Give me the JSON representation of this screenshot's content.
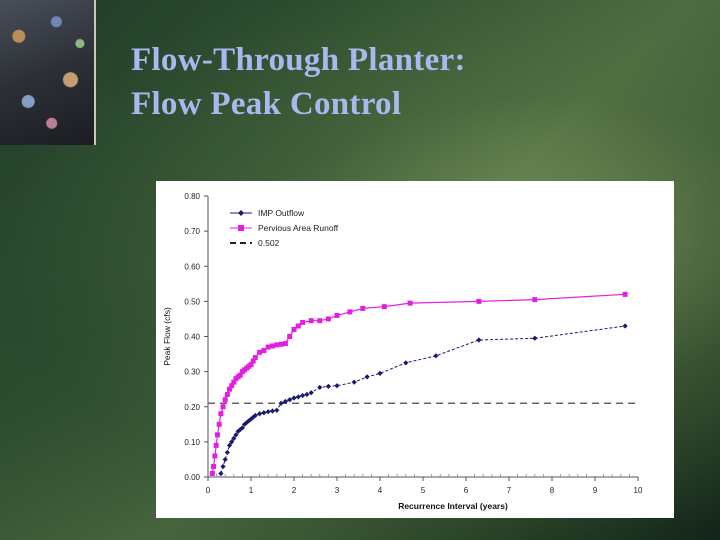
{
  "slide": {
    "title_line1": "Flow-Through Planter:",
    "title_line2": "Flow Peak Control"
  },
  "chart_data": {
    "type": "line",
    "xlabel": "Recurrence Interval (years)",
    "ylabel": "Peak Flow (cfs)",
    "xlim": [
      0,
      10
    ],
    "ylim": [
      0,
      0.8
    ],
    "x_ticks": [
      "0",
      "1",
      "2",
      "3",
      "4",
      "5",
      "6",
      "7",
      "8",
      "9",
      "10"
    ],
    "y_ticks": [
      "0.00",
      "0.10",
      "0.20",
      "0.30",
      "0.40",
      "0.50",
      "0.60",
      "0.70",
      "0.80"
    ],
    "grid": false,
    "legend_position": "top-left",
    "colors": {
      "imp": "#1a1a6e",
      "pervious": "#e21ee0",
      "threshold": "#666666"
    },
    "series": [
      {
        "name": "IMP Outflow",
        "marker": "diamond",
        "points": [
          [
            0.3,
            0.01
          ],
          [
            0.35,
            0.03
          ],
          [
            0.4,
            0.05
          ],
          [
            0.45,
            0.07
          ],
          [
            0.5,
            0.09
          ],
          [
            0.55,
            0.1
          ],
          [
            0.6,
            0.11
          ],
          [
            0.65,
            0.12
          ],
          [
            0.7,
            0.13
          ],
          [
            0.75,
            0.135
          ],
          [
            0.8,
            0.14
          ],
          [
            0.85,
            0.15
          ],
          [
            0.9,
            0.155
          ],
          [
            0.95,
            0.16
          ],
          [
            1.0,
            0.165
          ],
          [
            1.05,
            0.17
          ],
          [
            1.1,
            0.175
          ],
          [
            1.2,
            0.18
          ],
          [
            1.3,
            0.183
          ],
          [
            1.4,
            0.186
          ],
          [
            1.5,
            0.188
          ],
          [
            1.6,
            0.19
          ],
          [
            1.7,
            0.21
          ],
          [
            1.8,
            0.215
          ],
          [
            1.9,
            0.22
          ],
          [
            2.0,
            0.225
          ],
          [
            2.1,
            0.228
          ],
          [
            2.2,
            0.232
          ],
          [
            2.3,
            0.235
          ],
          [
            2.4,
            0.24
          ],
          [
            2.6,
            0.255
          ],
          [
            2.8,
            0.258
          ],
          [
            3.0,
            0.26
          ],
          [
            3.4,
            0.27
          ],
          [
            3.7,
            0.285
          ],
          [
            4.0,
            0.295
          ],
          [
            4.6,
            0.325
          ],
          [
            5.3,
            0.345
          ],
          [
            6.3,
            0.39
          ],
          [
            7.6,
            0.395
          ],
          [
            9.7,
            0.43
          ]
        ]
      },
      {
        "name": "Pervious Area Runoff",
        "marker": "square",
        "points": [
          [
            0.1,
            0.01
          ],
          [
            0.13,
            0.03
          ],
          [
            0.16,
            0.06
          ],
          [
            0.19,
            0.09
          ],
          [
            0.22,
            0.12
          ],
          [
            0.26,
            0.15
          ],
          [
            0.3,
            0.18
          ],
          [
            0.35,
            0.2
          ],
          [
            0.4,
            0.22
          ],
          [
            0.45,
            0.235
          ],
          [
            0.5,
            0.25
          ],
          [
            0.55,
            0.26
          ],
          [
            0.6,
            0.27
          ],
          [
            0.65,
            0.28
          ],
          [
            0.7,
            0.285
          ],
          [
            0.75,
            0.29
          ],
          [
            0.8,
            0.3
          ],
          [
            0.85,
            0.305
          ],
          [
            0.9,
            0.31
          ],
          [
            0.95,
            0.315
          ],
          [
            1.0,
            0.32
          ],
          [
            1.05,
            0.33
          ],
          [
            1.1,
            0.34
          ],
          [
            1.2,
            0.355
          ],
          [
            1.3,
            0.36
          ],
          [
            1.4,
            0.37
          ],
          [
            1.5,
            0.373
          ],
          [
            1.6,
            0.376
          ],
          [
            1.7,
            0.378
          ],
          [
            1.8,
            0.38
          ],
          [
            1.9,
            0.4
          ],
          [
            2.0,
            0.42
          ],
          [
            2.1,
            0.43
          ],
          [
            2.2,
            0.44
          ],
          [
            2.4,
            0.445
          ],
          [
            2.6,
            0.445
          ],
          [
            2.8,
            0.45
          ],
          [
            3.0,
            0.46
          ],
          [
            3.3,
            0.47
          ],
          [
            3.6,
            0.48
          ],
          [
            4.1,
            0.485
          ],
          [
            4.7,
            0.495
          ],
          [
            6.3,
            0.5
          ],
          [
            7.6,
            0.505
          ],
          [
            9.7,
            0.52
          ]
        ]
      },
      {
        "name": "0.502",
        "style": "dashed",
        "y": 0.21
      }
    ]
  }
}
